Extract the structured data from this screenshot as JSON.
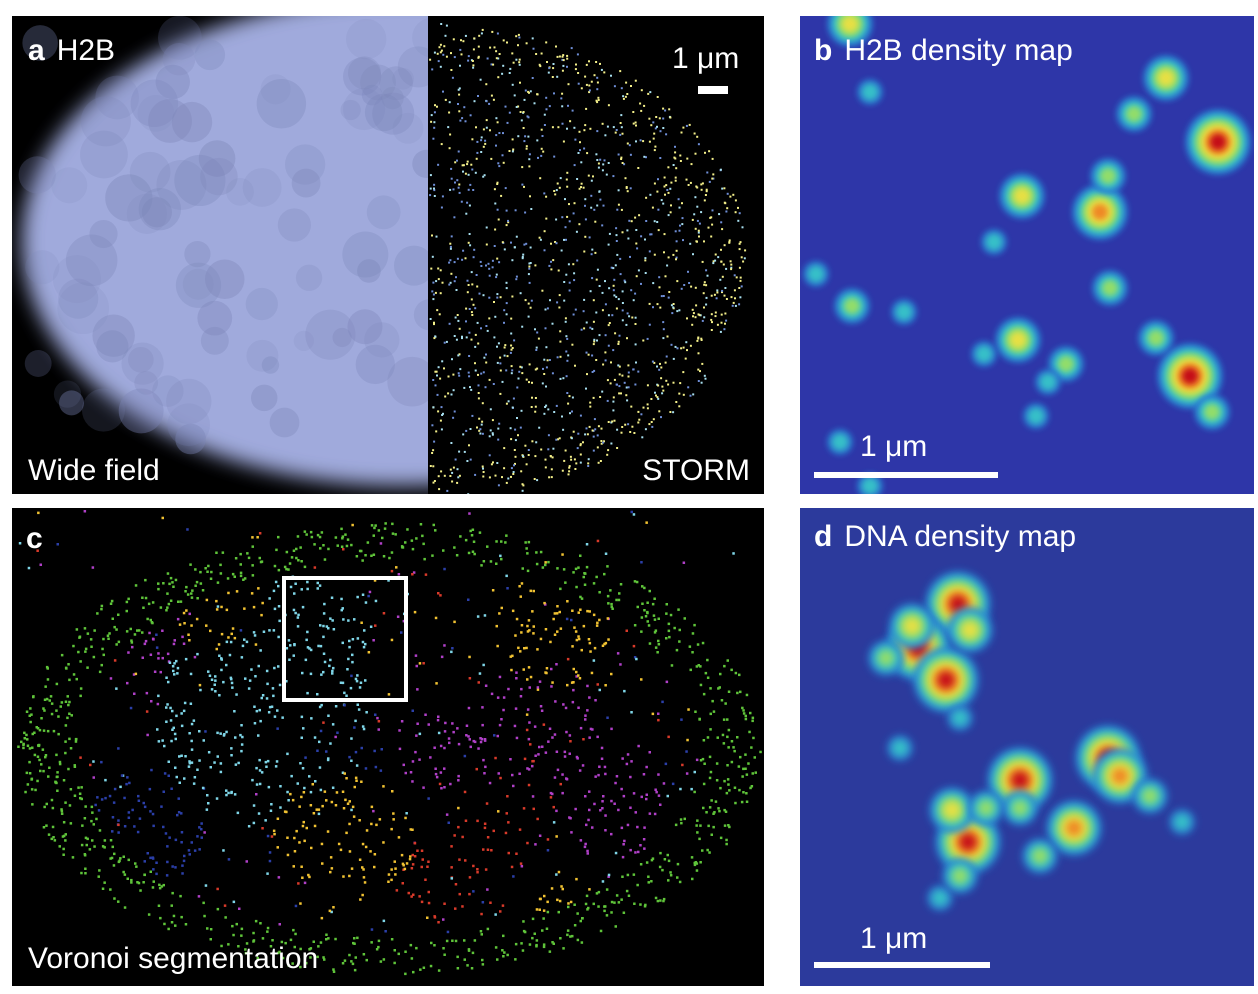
{
  "panels": {
    "a": {
      "letter": "a",
      "title": "H2B",
      "left_label": "Wide field",
      "right_label": "STORM",
      "scale": "1 μm"
    },
    "b": {
      "letter": "b",
      "title": "H2B density map",
      "scale": "1 μm"
    },
    "c": {
      "letter": "c",
      "caption": "Voronoi segmentation"
    },
    "d": {
      "letter": "d",
      "title": "DNA density map",
      "scale": "1 μm"
    }
  },
  "colors": {
    "widefield": "#a9b4e8",
    "storm_points": [
      "#f4f08a",
      "#a8e0f0",
      "#6f8fd8"
    ],
    "segments": [
      "#5fc43a",
      "#f1c232",
      "#7fd6e8",
      "#b040c8",
      "#d83a2a",
      "#2b3fa8"
    ],
    "heatmap_low": "#2e36a8",
    "heatmap_high": "#c00018"
  }
}
